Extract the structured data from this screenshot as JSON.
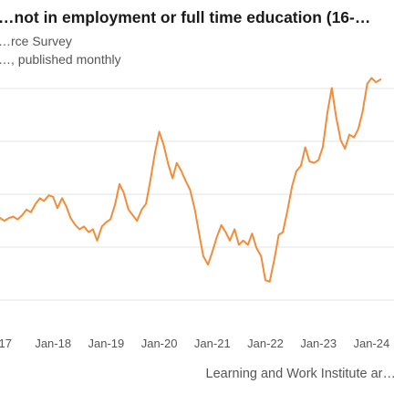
{
  "header": {
    "title": "…not in employment or full time education (16-…",
    "subtitle": "…rce Survey",
    "subtitle2": "…, published monthly"
  },
  "source": "Learning and Work Institute ar…",
  "colors": {
    "line": "#f28c3a",
    "grid": "#e3e3e3",
    "text": "#555555"
  },
  "chart_data": {
    "type": "line",
    "title": "…not in employment or full time education (16-…",
    "xlabel": "",
    "ylabel": "",
    "x_tick_labels": [
      "…17",
      "Jan-18",
      "Jan-19",
      "Jan-20",
      "Jan-21",
      "Jan-22",
      "Jan-23",
      "Jan-24"
    ],
    "grid": "horizontal",
    "series": [
      {
        "values": [
          [
            2017.0,
            2.0
          ],
          [
            2017.08,
            1.8
          ],
          [
            2017.17,
            2.0
          ],
          [
            2017.25,
            2.1
          ],
          [
            2017.33,
            1.9
          ],
          [
            2017.42,
            2.2
          ],
          [
            2017.5,
            2.6
          ],
          [
            2017.58,
            2.4
          ],
          [
            2017.67,
            3.0
          ],
          [
            2017.75,
            3.4
          ],
          [
            2017.83,
            3.2
          ],
          [
            2017.92,
            3.6
          ],
          [
            2018.0,
            3.5
          ],
          [
            2018.08,
            2.7
          ],
          [
            2018.17,
            3.4
          ],
          [
            2018.25,
            2.8
          ],
          [
            2018.33,
            2.0
          ],
          [
            2018.42,
            1.5
          ],
          [
            2018.5,
            1.2
          ],
          [
            2018.58,
            1.4
          ],
          [
            2018.67,
            1.0
          ],
          [
            2018.75,
            1.2
          ],
          [
            2018.83,
            0.4
          ],
          [
            2018.92,
            1.4
          ],
          [
            2019.0,
            1.7
          ],
          [
            2019.08,
            1.9
          ],
          [
            2019.17,
            3.0
          ],
          [
            2019.25,
            4.4
          ],
          [
            2019.33,
            3.8
          ],
          [
            2019.42,
            2.6
          ],
          [
            2019.5,
            2.2
          ],
          [
            2019.58,
            1.8
          ],
          [
            2019.67,
            2.6
          ],
          [
            2019.75,
            3.0
          ],
          [
            2019.83,
            4.6
          ],
          [
            2019.92,
            6.6
          ],
          [
            2020.0,
            8.1
          ],
          [
            2020.08,
            7.2
          ],
          [
            2020.17,
            5.8
          ],
          [
            2020.25,
            4.8
          ],
          [
            2020.33,
            5.9
          ],
          [
            2020.42,
            5.3
          ],
          [
            2020.5,
            4.6
          ],
          [
            2020.58,
            4.0
          ],
          [
            2020.67,
            2.6
          ],
          [
            2020.75,
            0.9
          ],
          [
            2020.83,
            -0.7
          ],
          [
            2020.92,
            -1.3
          ],
          [
            2021.0,
            -0.4
          ],
          [
            2021.08,
            0.6
          ],
          [
            2021.17,
            1.5
          ],
          [
            2021.25,
            1.0
          ],
          [
            2021.33,
            0.4
          ],
          [
            2021.42,
            1.2
          ],
          [
            2021.5,
            0.1
          ],
          [
            2021.58,
            0.4
          ],
          [
            2021.67,
            0.1
          ],
          [
            2021.75,
            0.9
          ],
          [
            2021.83,
            -0.1
          ],
          [
            2021.92,
            -0.7
          ],
          [
            2022.0,
            -2.4
          ],
          [
            2022.08,
            -2.5
          ],
          [
            2022.17,
            -0.9
          ],
          [
            2022.25,
            0.8
          ],
          [
            2022.33,
            1.0
          ],
          [
            2022.42,
            2.6
          ],
          [
            2022.5,
            4.2
          ],
          [
            2022.58,
            5.3
          ],
          [
            2022.67,
            5.7
          ],
          [
            2022.75,
            7.0
          ],
          [
            2022.83,
            6.0
          ],
          [
            2022.92,
            5.9
          ],
          [
            2023.0,
            6.1
          ],
          [
            2023.08,
            7.0
          ],
          [
            2023.17,
            9.5
          ],
          [
            2023.25,
            11.2
          ],
          [
            2023.33,
            9.2
          ],
          [
            2023.42,
            7.5
          ],
          [
            2023.5,
            6.9
          ],
          [
            2023.58,
            7.9
          ],
          [
            2023.67,
            7.7
          ],
          [
            2023.75,
            8.3
          ],
          [
            2023.83,
            9.5
          ],
          [
            2023.92,
            11.5
          ],
          [
            2024.0,
            11.9
          ],
          [
            2024.08,
            11.6
          ],
          [
            2024.17,
            11.8
          ]
        ]
      }
    ]
  }
}
